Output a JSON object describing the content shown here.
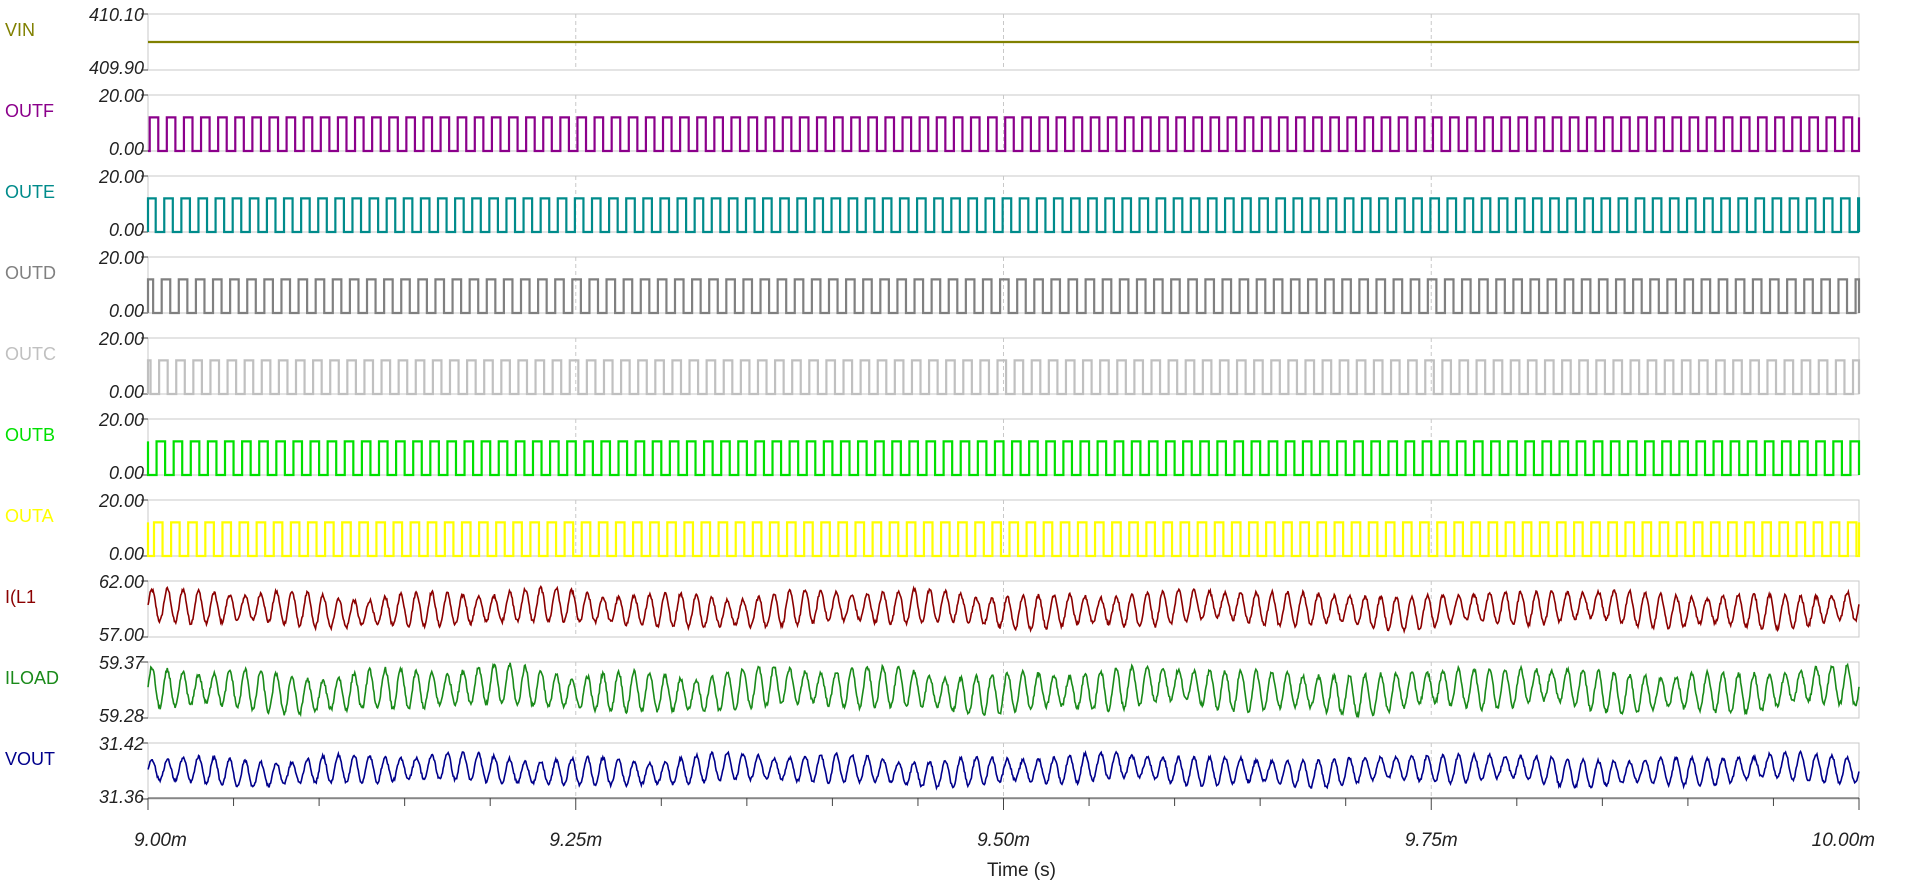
{
  "chart_data": {
    "type": "line",
    "xlabel": "Time (s)",
    "xlim": [
      0.009,
      0.01
    ],
    "x_ticks": [
      {
        "value": 0.009,
        "label": "9.00m"
      },
      {
        "value": 0.00925,
        "label": "9.25m"
      },
      {
        "value": 0.0095,
        "label": "9.50m"
      },
      {
        "value": 0.00975,
        "label": "9.75m"
      },
      {
        "value": 0.01,
        "label": "10.00m"
      }
    ],
    "grid": true,
    "series": [
      {
        "name": "VIN",
        "color": "#808000",
        "ylim": [
          409.9,
          410.1
        ],
        "y_ticks": [
          "410.10",
          "409.90"
        ],
        "shape": "constant",
        "level": 410.0
      },
      {
        "name": "OUTF",
        "color": "#8b008b",
        "ylim": [
          0.0,
          20.0
        ],
        "y_ticks": [
          "20.00",
          "0.00"
        ],
        "shape": "square",
        "low": 0,
        "high": 12,
        "cycles": 100,
        "phase": 0.0
      },
      {
        "name": "OUTE",
        "color": "#008b8b",
        "ylim": [
          0.0,
          20.0
        ],
        "y_ticks": [
          "20.00",
          "0.00"
        ],
        "shape": "square",
        "low": 0,
        "high": 12,
        "cycles": 100,
        "phase": 0.15
      },
      {
        "name": "OUTD",
        "color": "#808080",
        "ylim": [
          0.0,
          20.0
        ],
        "y_ticks": [
          "20.00",
          "0.00"
        ],
        "shape": "square",
        "low": 0,
        "high": 12,
        "cycles": 100,
        "phase": 0.3
      },
      {
        "name": "OUTC",
        "color": "#c0c0c0",
        "ylim": [
          0.0,
          20.0
        ],
        "y_ticks": [
          "20.00",
          "0.00"
        ],
        "shape": "square",
        "low": 0,
        "high": 12,
        "cycles": 100,
        "phase": 0.45
      },
      {
        "name": "OUTB",
        "color": "#00e000",
        "ylim": [
          0.0,
          20.0
        ],
        "y_ticks": [
          "20.00",
          "0.00"
        ],
        "shape": "square",
        "low": 0,
        "high": 12,
        "cycles": 100,
        "phase": 0.6
      },
      {
        "name": "OUTA",
        "color": "#ffff00",
        "ylim": [
          0.0,
          20.0
        ],
        "y_ticks": [
          "20.00",
          "0.00"
        ],
        "shape": "square",
        "low": 0,
        "high": 12,
        "cycles": 100,
        "phase": 0.75
      },
      {
        "name": "I(L1",
        "color": "#8b0000",
        "ylim": [
          57.0,
          62.0
        ],
        "y_ticks": [
          "62.00",
          "57.00"
        ],
        "shape": "ripple",
        "center": 59.5,
        "amplitude": 1.3,
        "mod_amplitude": 0.25,
        "cycles": 110
      },
      {
        "name": "ILOAD",
        "color": "#1a8a1a",
        "ylim": [
          59.28,
          59.37
        ],
        "y_ticks": [
          "59.37",
          "59.28"
        ],
        "shape": "ripple",
        "center": 59.325,
        "amplitude": 0.028,
        "mod_amplitude": 0.006,
        "cycles": 110
      },
      {
        "name": "VOUT",
        "color": "#00008b",
        "ylim": [
          31.36,
          31.42
        ],
        "y_ticks": [
          "31.42",
          "31.36"
        ],
        "shape": "ripple",
        "center": 31.391,
        "amplitude": 0.013,
        "mod_amplitude": 0.003,
        "cycles": 110
      }
    ]
  }
}
